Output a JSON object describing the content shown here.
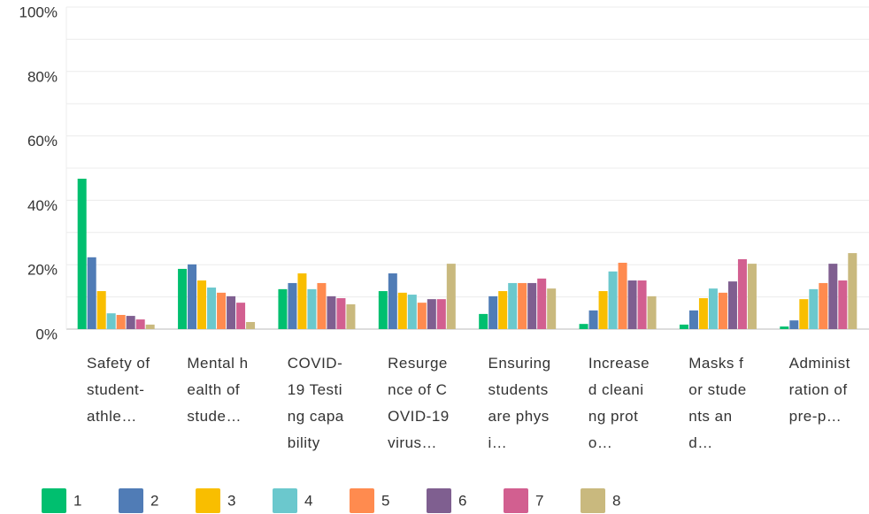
{
  "chart_data": {
    "type": "bar",
    "categories": [
      "Safety of student-athle…",
      "Mental health of stude…",
      "COVID-19 Testing capability",
      "Resurgence of COVID-19 virus…",
      "Ensuring students are physi…",
      "Increased cleaning proto…",
      "Masks for students and…",
      "Administration of pre-p…"
    ],
    "series": [
      {
        "name": "1",
        "color": "#00bf6f",
        "values": [
          46.7,
          18.7,
          12.4,
          11.8,
          4.7,
          1.6,
          1.4,
          0.8
        ]
      },
      {
        "name": "2",
        "color": "#507cb6",
        "values": [
          22.3,
          20.1,
          14.3,
          17.3,
          10.2,
          5.8,
          5.8,
          2.7
        ]
      },
      {
        "name": "3",
        "color": "#f9be00",
        "values": [
          11.8,
          15.1,
          17.3,
          11.3,
          11.8,
          11.8,
          9.6,
          9.3
        ]
      },
      {
        "name": "4",
        "color": "#6bc8cd",
        "values": [
          4.9,
          12.9,
          12.4,
          10.7,
          14.3,
          17.9,
          12.6,
          12.4
        ]
      },
      {
        "name": "5",
        "color": "#ff8b4f",
        "values": [
          4.4,
          11.3,
          14.3,
          8.2,
          14.3,
          20.6,
          11.3,
          14.3
        ]
      },
      {
        "name": "6",
        "color": "#7f5f90",
        "values": [
          4.1,
          10.2,
          10.2,
          9.3,
          14.3,
          15.1,
          14.8,
          20.3
        ]
      },
      {
        "name": "7",
        "color": "#d25f90",
        "values": [
          3.0,
          8.2,
          9.6,
          9.3,
          15.7,
          15.1,
          21.7,
          15.1
        ]
      },
      {
        "name": "8",
        "color": "#c9b97e",
        "values": [
          1.4,
          2.2,
          7.7,
          20.3,
          12.6,
          10.2,
          20.3,
          23.6
        ]
      }
    ],
    "ylim": [
      0,
      100
    ],
    "yticks": [
      {
        "value": 0,
        "label": "0%"
      },
      {
        "value": 20,
        "label": "20%"
      },
      {
        "value": 40,
        "label": "40%"
      },
      {
        "value": 60,
        "label": "60%"
      },
      {
        "value": 80,
        "label": "80%"
      },
      {
        "value": 100,
        "label": "100%"
      }
    ],
    "minor_yticks": [
      10,
      30,
      50,
      70,
      90
    ],
    "grid": true
  }
}
